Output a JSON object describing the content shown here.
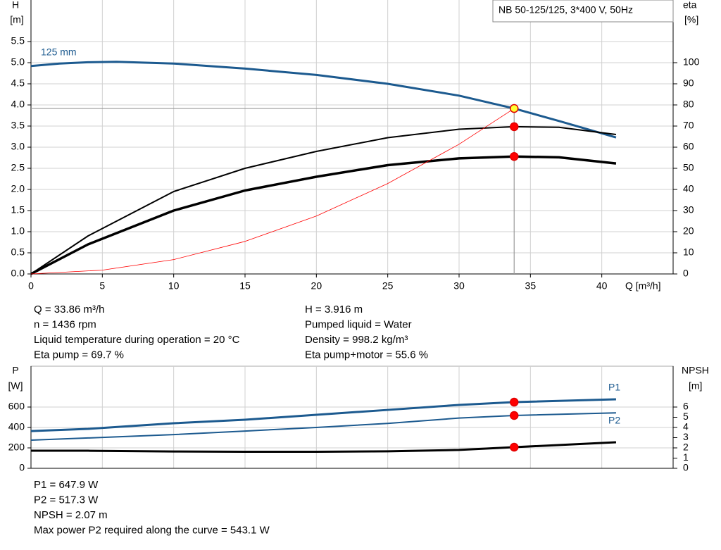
{
  "chart_data": [
    {
      "type": "line",
      "title": "NB 50-125/125, 3*400 V, 50Hz",
      "ylabel": "H",
      "yunit": "[m]",
      "y2label": "eta",
      "y2unit": "[%]",
      "xlabel": "Q [m³/h]",
      "xlim": [
        0,
        45
      ],
      "xticks": [
        0,
        5,
        10,
        15,
        20,
        25,
        30,
        35,
        40
      ],
      "xtick_labels": true,
      "ylim": [
        0,
        6.5
      ],
      "yticks": [
        {
          "value": 0,
          "label": "0.0"
        },
        {
          "value": 0.5,
          "label": "0.5"
        },
        {
          "value": 1,
          "label": "1.0"
        },
        {
          "value": 1.5,
          "label": "1.5"
        },
        {
          "value": 2,
          "label": "2.0"
        },
        {
          "value": 2.5,
          "label": "2.5"
        },
        {
          "value": 3,
          "label": "3.0"
        },
        {
          "value": 3.5,
          "label": "3.5"
        },
        {
          "value": 4,
          "label": "4.0"
        },
        {
          "value": 4.5,
          "label": "4.5"
        },
        {
          "value": 5,
          "label": "5.0"
        },
        {
          "value": 5.5,
          "label": "5.5"
        }
      ],
      "y2lim": [
        0,
        130
      ],
      "y2ticks": [
        0,
        10,
        20,
        30,
        40,
        50,
        60,
        70,
        80,
        90,
        100
      ],
      "grid": true,
      "series": [
        {
          "name": "125 mm",
          "color": "#1c5a8f",
          "width": 3,
          "x": [
            0,
            2,
            4,
            6,
            10,
            15,
            20,
            25,
            30,
            33.86,
            37,
            41
          ],
          "values": [
            4.92,
            4.98,
            5.01,
            5.02,
            4.98,
            4.86,
            4.71,
            4.5,
            4.22,
            3.916,
            3.62,
            3.23
          ]
        },
        {
          "color": "#000000",
          "width": 2,
          "axis": "y2",
          "x": [
            0,
            4,
            10,
            15,
            20,
            25,
            30,
            33.86,
            37,
            41
          ],
          "values": [
            0,
            18,
            39,
            50,
            58,
            64.5,
            68.5,
            69.7,
            69.4,
            66
          ]
        },
        {
          "color": "#000000",
          "width": 3.5,
          "axis": "y2",
          "x": [
            0,
            4,
            10,
            15,
            20,
            25,
            30,
            33.86,
            37,
            41
          ],
          "values": [
            0,
            14,
            30,
            39.5,
            46,
            51.5,
            54.7,
            55.6,
            55.2,
            52.3
          ]
        },
        {
          "color": "#ff0000",
          "width": 0.8,
          "x": [
            0,
            5,
            10,
            15,
            20,
            25,
            30,
            33.86
          ],
          "values": [
            0,
            0.09,
            0.34,
            0.77,
            1.37,
            2.14,
            3.07,
            3.916
          ]
        }
      ],
      "crosshair": true,
      "duty_points": [
        {
          "x": 33.86,
          "y": 3.916,
          "color": "#ffff33"
        },
        {
          "x": 33.86,
          "y": 69.7,
          "axis": "y2",
          "color": "#ff0000"
        },
        {
          "x": 33.86,
          "y": 55.6,
          "axis": "y2",
          "color": "#ff0000"
        }
      ],
      "info": [
        "Q = 33.86 m³/h",
        "H = 3.916 m",
        "n = 1436 rpm",
        "Pumped liquid = Water",
        "Liquid temperature during operation = 20 °C",
        "Density = 998.2 kg/m³",
        "Eta pump = 69.7 %",
        "Eta pump+motor = 55.6 %"
      ]
    },
    {
      "type": "line",
      "ylabel": "P",
      "yunit": "[W]",
      "y2label": "NPSH",
      "y2unit": "[m]",
      "xlim": [
        0,
        45
      ],
      "xticks": [
        0,
        5,
        10,
        15,
        20,
        25,
        30,
        35,
        40
      ],
      "xtick_labels": false,
      "ylim": [
        0,
        1000
      ],
      "yticks": [
        0,
        200,
        400,
        600
      ],
      "y2lim": [
        0,
        10
      ],
      "y2ticks": [
        0,
        1,
        2,
        3,
        4,
        5,
        6
      ],
      "grid": true,
      "series": [
        {
          "name": "P1",
          "color": "#1c5a8f",
          "width": 3,
          "x": [
            0,
            4,
            10,
            15,
            20,
            25,
            30,
            33.86,
            41
          ],
          "values": [
            365,
            386,
            441,
            476,
            524,
            572,
            621,
            647.9,
            676
          ]
        },
        {
          "name": "P2",
          "color": "#1c5a8f",
          "width": 2,
          "x": [
            0,
            4,
            10,
            15,
            20,
            25,
            30,
            33.86,
            41
          ],
          "values": [
            276,
            297,
            330,
            365,
            400,
            440,
            492,
            517.3,
            543.1
          ]
        },
        {
          "color": "#000000",
          "width": 3,
          "axis": "y2",
          "x": [
            0,
            4,
            10,
            15,
            20,
            25,
            30,
            33.86,
            41
          ],
          "values": [
            1.72,
            1.72,
            1.65,
            1.62,
            1.62,
            1.66,
            1.8,
            2.07,
            2.55
          ]
        }
      ],
      "crosshair": false,
      "duty_points": [
        {
          "x": 33.86,
          "y": 647.9,
          "color": "#ff0000"
        },
        {
          "x": 33.86,
          "y": 517.3,
          "color": "#ff0000"
        },
        {
          "x": 33.86,
          "y": 2.07,
          "axis": "y2",
          "color": "#ff0000"
        }
      ],
      "info": [
        "P1 = 647.9 W",
        "P2 = 517.3 W",
        "NPSH = 2.07 m",
        "Max power P2 required along the curve = 543.1 W"
      ]
    }
  ]
}
